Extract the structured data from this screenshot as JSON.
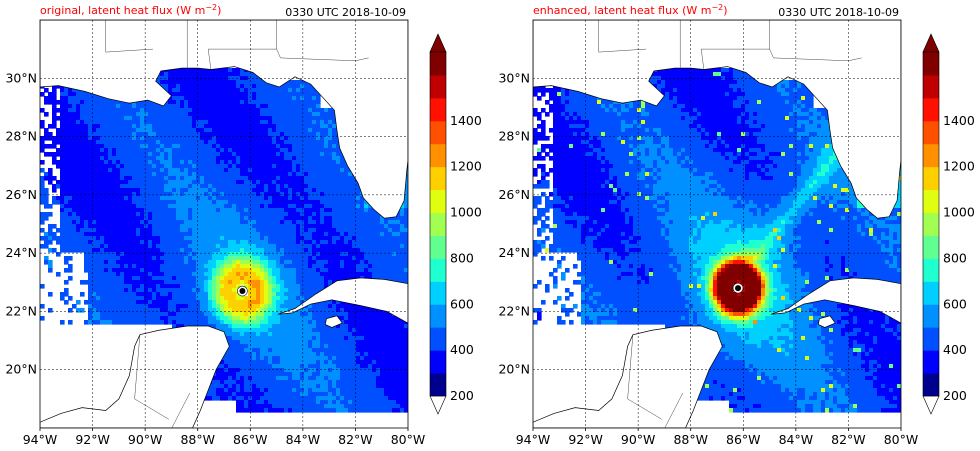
{
  "colors": {
    "title_left": "#ff0000",
    "title_right": "#000000",
    "ocean_zero": "#ffffff",
    "coast": "#000000",
    "grid": "#000000",
    "colorbar": [
      "#00008f",
      "#0000ff",
      "#0050ff",
      "#0090ff",
      "#00d0ff",
      "#20ffd0",
      "#60ff90",
      "#a0ff50",
      "#e0ff10",
      "#ffd000",
      "#ff9000",
      "#ff5000",
      "#ff1000",
      "#c00000",
      "#800000"
    ]
  },
  "chart_data": [
    {
      "type": "heatmap",
      "title": "original, latent heat flux (W m$^{-2}$)",
      "title_display": "original, latent heat flux (W m",
      "title_sup": "−2",
      "title_close": ")",
      "time_label": "0330 UTC 2018-10-09",
      "variable": "latent heat flux",
      "units": "W m-2",
      "xlim": [
        -94,
        -80
      ],
      "ylim": [
        18,
        32
      ],
      "x_ticks": [
        "94°W",
        "92°W",
        "90°W",
        "88°W",
        "86°W",
        "84°W",
        "82°W",
        "80°W"
      ],
      "y_ticks": [
        "20°N",
        "22°N",
        "24°N",
        "26°N",
        "28°N",
        "30°N"
      ],
      "grid": true,
      "storm_center": {
        "lon": -86.3,
        "lat": 22.7
      },
      "max_flux_approx": 900,
      "colorbar": {
        "levels": [
          200,
          300,
          400,
          500,
          600,
          700,
          800,
          900,
          1000,
          1100,
          1200,
          1300,
          1400,
          1500
        ],
        "tick_labels": [
          "200",
          "400",
          "600",
          "800",
          "1000",
          "1200",
          "1400"
        ],
        "extend": "both"
      }
    },
    {
      "type": "heatmap",
      "title": "enhanced, latent heat flux (W m$^{-2}$)",
      "title_display": "enhanced, latent heat flux (W m",
      "title_sup": "−2",
      "title_close": ")",
      "time_label": "0330 UTC 2018-10-09",
      "variable": "latent heat flux",
      "units": "W m-2",
      "xlim": [
        -94,
        -80
      ],
      "ylim": [
        18,
        32
      ],
      "x_ticks": [
        "94°W",
        "92°W",
        "90°W",
        "88°W",
        "86°W",
        "84°W",
        "82°W",
        "80°W"
      ],
      "y_ticks": [
        "20°N",
        "22°N",
        "24°N",
        "26°N",
        "28°N",
        "30°N"
      ],
      "grid": true,
      "storm_center": {
        "lon": -86.2,
        "lat": 22.8
      },
      "max_flux_approx": 1450,
      "colorbar": {
        "levels": [
          200,
          300,
          400,
          500,
          600,
          700,
          800,
          900,
          1000,
          1100,
          1200,
          1300,
          1400,
          1500
        ],
        "tick_labels": [
          "200",
          "400",
          "600",
          "800",
          "1000",
          "1200",
          "1400"
        ],
        "extend": "both"
      }
    }
  ]
}
